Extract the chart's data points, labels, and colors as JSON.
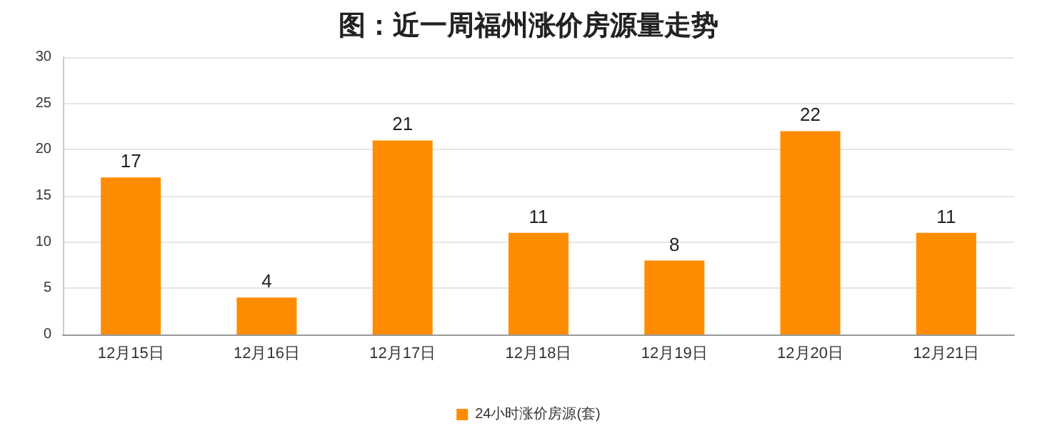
{
  "chart_data": {
    "type": "bar",
    "title": "图：近一周福州涨价房源量走势",
    "categories": [
      "12月15日",
      "12月16日",
      "12月17日",
      "12月18日",
      "12月19日",
      "12月20日",
      "12月21日"
    ],
    "series": [
      {
        "name": "24小时涨价房源(套)",
        "color": "#ff8c00",
        "values": [
          17,
          4,
          21,
          11,
          8,
          22,
          11
        ]
      }
    ],
    "ylim": [
      0,
      30
    ],
    "yticks": [
      0,
      5,
      10,
      15,
      20,
      25,
      30
    ],
    "grid": "y",
    "legend": "bottom",
    "data_labels": true
  }
}
